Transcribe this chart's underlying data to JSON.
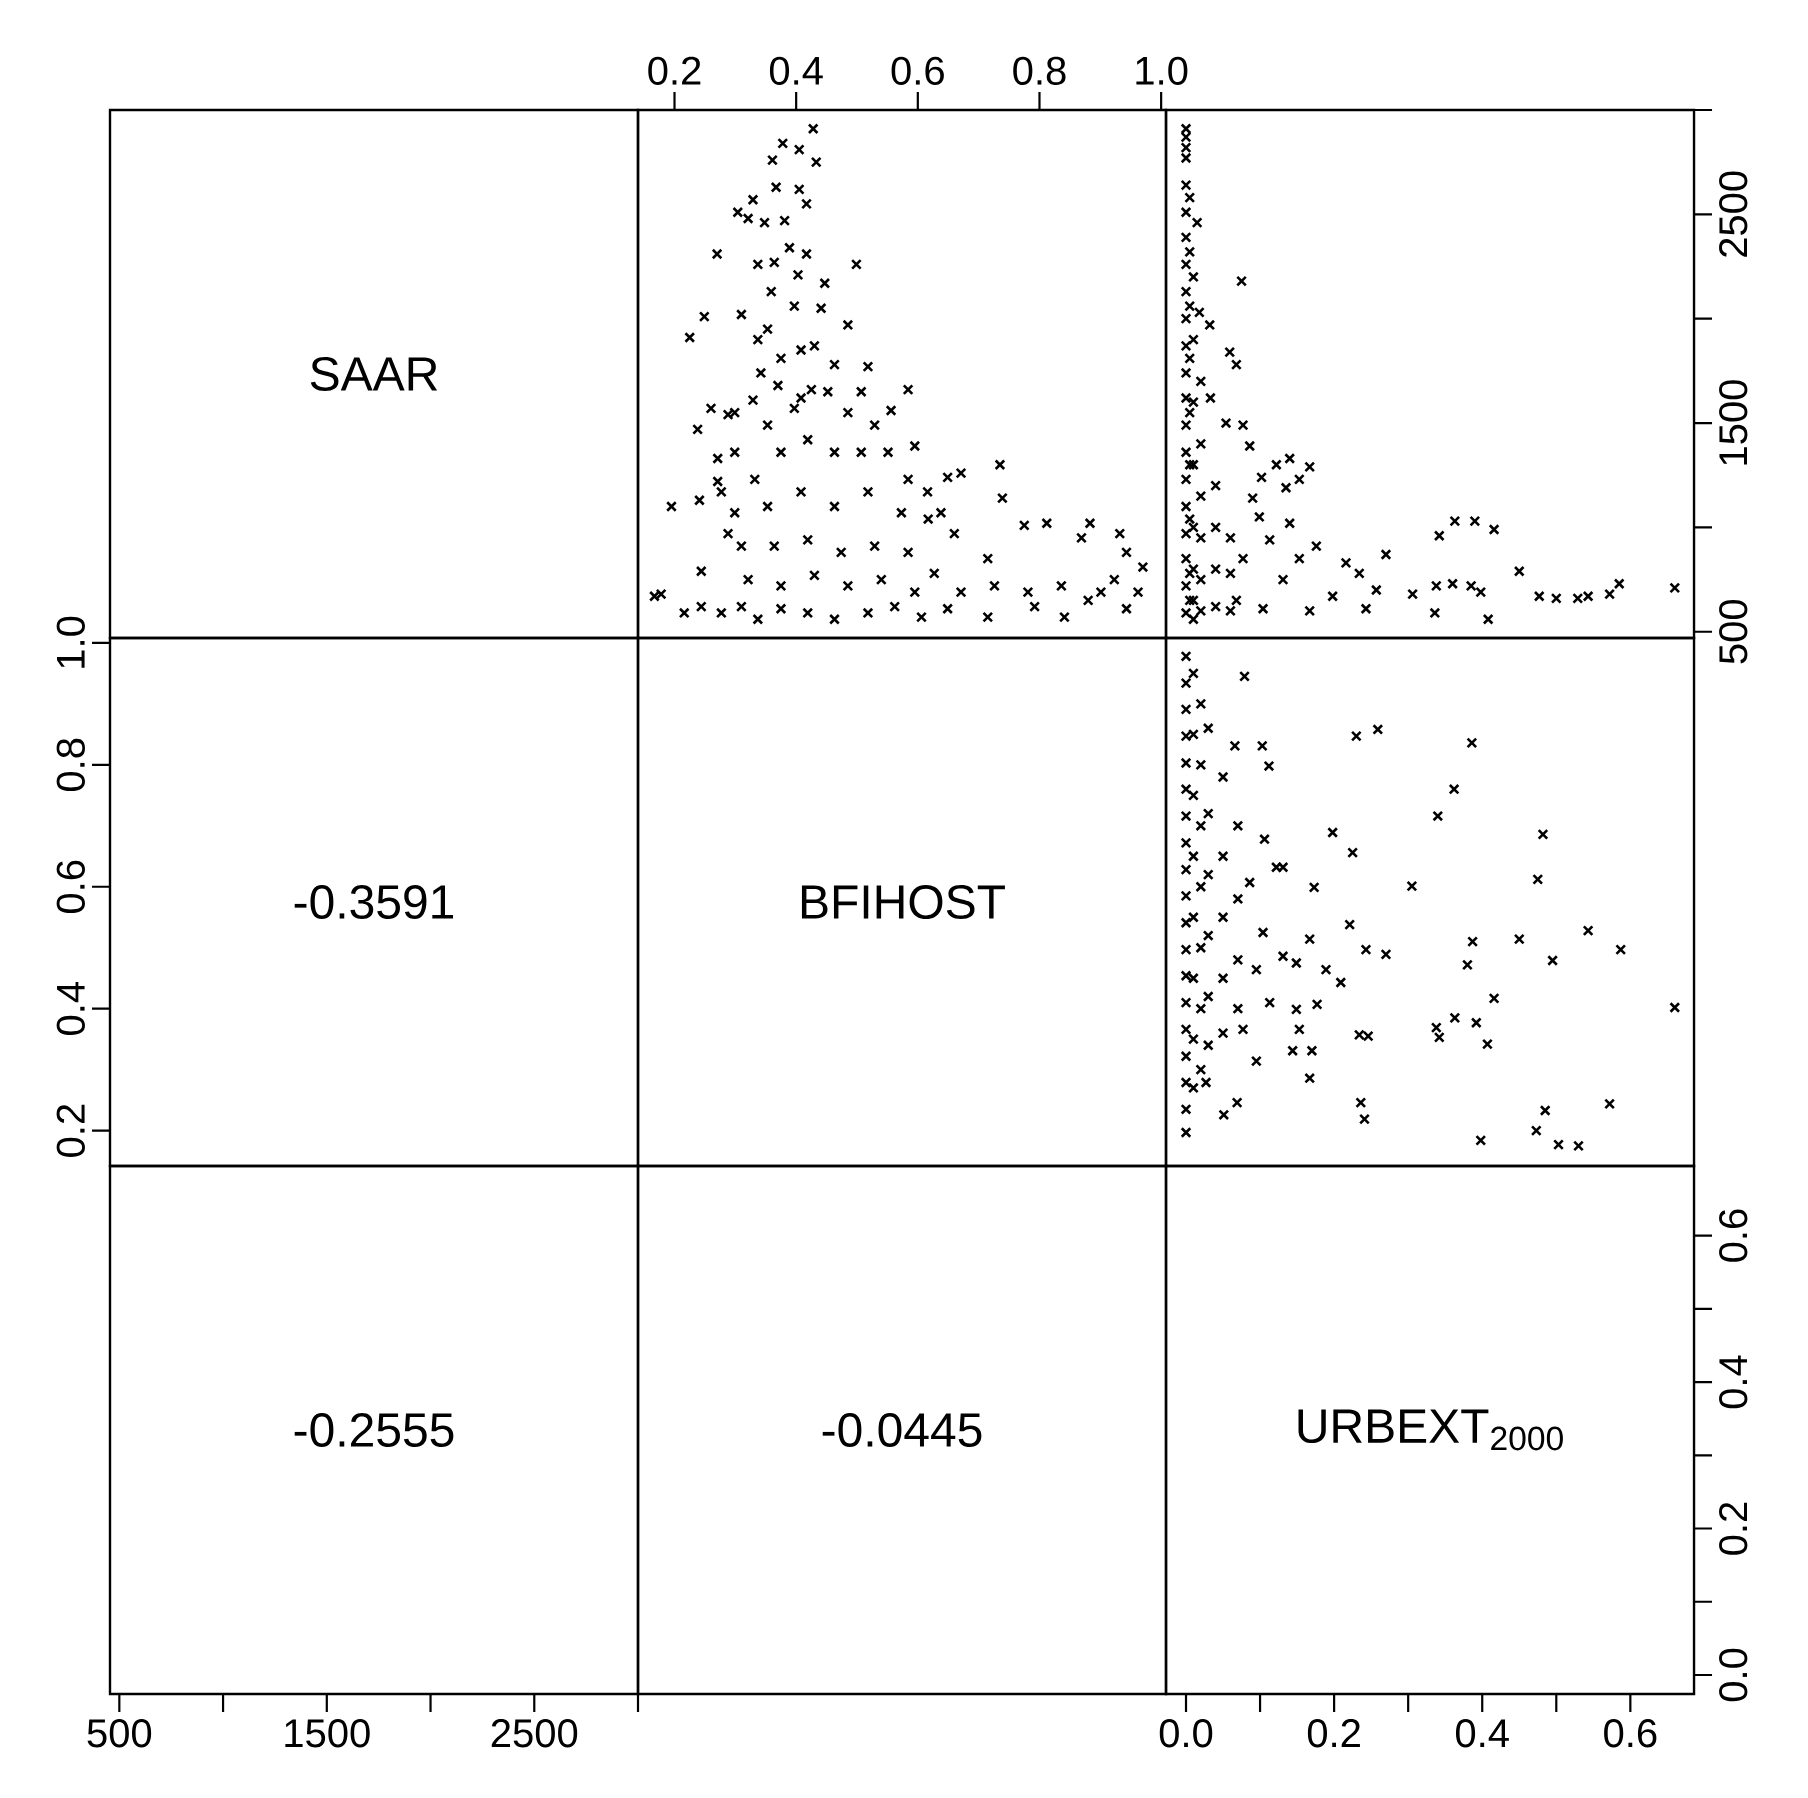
{
  "chart_data": [
    {
      "type": "other",
      "title": "SAAR"
    },
    {
      "type": "scatter",
      "marker": "cross",
      "xlim": [
        0.14,
        1.008
      ],
      "xticks": [
        0.2,
        0.4,
        0.6,
        0.8,
        {
          "value": 1.0,
          "label": "1.0"
        }
      ],
      "ylim": [
        470,
        3000
      ],
      "tick_labels": "x",
      "series": [
        {
          "color": "#000000",
          "x": [
            0.428,
            0.378,
            0.405,
            0.361,
            0.433,
            0.367,
            0.405,
            0.417,
            0.329,
            0.304,
            0.321,
            0.348,
            0.381,
            0.389,
            0.27,
            0.417,
            0.337,
            0.364,
            0.499,
            0.403,
            0.447,
            0.359,
            0.249,
            0.225,
            0.31,
            0.441,
            0.485,
            0.353,
            0.408,
            0.342,
            0.463,
            0.518,
            0.584,
            0.425,
            0.37,
            0.329,
            0.26,
            0.299,
            0.238,
            0.556,
            0.485,
            0.397,
            0.271,
            0.271,
            0.241,
            0.195,
            0.649,
            0.671,
            0.735,
            0.739,
            0.775,
            0.812,
            0.883,
            0.869,
            0.932,
            0.943,
            0.97,
            0.962,
            0.943,
            0.841,
            0.715,
            0.244,
            0.178,
            0.167,
            0.216,
            0.244,
            0.277,
            0.337,
            0.463,
            0.606,
            0.792,
            0.901,
            0.616,
            0.66,
            0.715,
            0.299,
            0.332,
            0.375,
            0.419,
            0.463,
            0.507,
            0.551,
            0.584,
            0.299,
            0.353,
            0.408,
            0.463,
            0.518,
            0.573,
            0.617,
            0.31,
            0.364,
            0.419,
            0.474,
            0.529,
            0.584,
            0.627,
            0.321,
            0.375,
            0.43,
            0.485,
            0.54,
            0.595,
            0.671,
            0.726,
            0.781,
            0.836,
            0.88,
            0.923,
            0.31,
            0.375,
            0.419,
            0.518,
            0.562,
            0.649,
            0.353,
            0.408,
            0.452,
            0.375,
            0.43,
            0.397,
            0.337,
            0.288,
            0.507,
            0.529,
            0.595,
            0.638,
            0.277,
            0.288
          ],
          "values": [
            2910,
            2840,
            2810,
            2760,
            2750,
            2630,
            2620,
            2550,
            2570,
            2510,
            2480,
            2460,
            2470,
            2340,
            2310,
            2310,
            2260,
            2270,
            2260,
            2210,
            2170,
            2130,
            2010,
            1910,
            2020,
            2050,
            1970,
            1950,
            1850,
            1740,
            1780,
            1770,
            1660,
            1660,
            1680,
            1610,
            1570,
            1550,
            1470,
            1560,
            1550,
            1570,
            1330,
            1220,
            1130,
            1100,
            1240,
            1260,
            1300,
            1140,
            1010,
            1020,
            1020,
            950,
            970,
            880,
            810,
            690,
            610,
            570,
            570,
            790,
            680,
            670,
            590,
            620,
            590,
            560,
            560,
            570,
            620,
            690,
            1170,
            970,
            850,
            1360,
            1230,
            1360,
            1420,
            1360,
            1360,
            1360,
            1230,
            1070,
            1100,
            1170,
            1100,
            1170,
            1070,
            1040,
            910,
            910,
            940,
            880,
            910,
            880,
            780,
            750,
            720,
            770,
            720,
            750,
            690,
            690,
            720,
            690,
            720,
            650,
            750,
            620,
            610,
            590,
            590,
            620,
            610,
            1490,
            1620,
            1650,
            1810,
            1870,
            2060,
            1900,
            1540,
            1650,
            1490,
            1390,
            1070,
            1170,
            970
          ]
        }
      ]
    },
    {
      "type": "scatter",
      "marker": "cross",
      "xlim": [
        -0.027,
        0.686
      ],
      "ylim": [
        470,
        3000
      ],
      "yticks": [
        500,
        {
          "value": 1000,
          "label": null
        },
        1500,
        {
          "value": 2000,
          "label": null
        },
        2500,
        {
          "value": 3000,
          "label": null
        }
      ],
      "tick_labels": "y",
      "series": [
        {
          "color": "#000000",
          "x": [
            0,
            0,
            0,
            0,
            0,
            0,
            0,
            0,
            0,
            0,
            0,
            0,
            0,
            0,
            0,
            0,
            0,
            0,
            0,
            0,
            0,
            0.005,
            0.005,
            0.005,
            0.005,
            0.005,
            0.005,
            0.005,
            0.005,
            0.005,
            0.01,
            0.01,
            0.01,
            0.01,
            0.01,
            0.01,
            0.01,
            0.01,
            0.02,
            0.02,
            0.02,
            0.02,
            0.02,
            0.02,
            0.04,
            0.04,
            0.04,
            0.04,
            0.06,
            0.06,
            0.06,
            0.015,
            0.075,
            0.018,
            0.032,
            0.059,
            0.068,
            0.033,
            0.054,
            0.077,
            0.086,
            0.122,
            0.14,
            0.167,
            0.153,
            0.102,
            0.09,
            0.135,
            0.099,
            0.14,
            0.113,
            0.176,
            0.216,
            0.234,
            0.27,
            0.257,
            0.243,
            0.167,
            0.104,
            0.198,
            0.342,
            0.363,
            0.39,
            0.416,
            0.306,
            0.338,
            0.36,
            0.385,
            0.398,
            0.45,
            0.336,
            0.408,
            0.477,
            0.5,
            0.529,
            0.543,
            0.572,
            0.585,
            0.66,
            0.153,
            0.131,
            0.077,
            0.068
          ],
          "values": [
            2910,
            2870,
            2820,
            2770,
            2640,
            2510,
            2390,
            2260,
            2130,
            2000,
            1870,
            1740,
            1620,
            1490,
            1360,
            1230,
            1100,
            970,
            850,
            720,
            590,
            2580,
            2320,
            2060,
            1810,
            1550,
            1300,
            1040,
            780,
            650,
            2200,
            1900,
            1600,
            1300,
            1000,
            800,
            650,
            560,
            1700,
            1400,
            1150,
            950,
            750,
            600,
            1200,
            1000,
            800,
            620,
            950,
            780,
            600,
            2460,
            2180,
            2030,
            1970,
            1840,
            1780,
            1620,
            1500,
            1490,
            1390,
            1300,
            1330,
            1290,
            1230,
            1240,
            1140,
            1190,
            1050,
            1020,
            940,
            910,
            830,
            780,
            870,
            700,
            610,
            600,
            610,
            670,
            960,
            1030,
            1030,
            990,
            680,
            720,
            730,
            720,
            690,
            790,
            590,
            560,
            670,
            660,
            660,
            670,
            680,
            730,
            710,
            850,
            750,
            850,
            650
          ]
        }
      ]
    },
    {
      "type": "scatter",
      "title": "-0.3591",
      "xlim": [
        455,
        3000
      ],
      "ylim": [
        0.142,
        1.008
      ],
      "yticks": [
        0.2,
        0.4,
        0.6,
        0.8,
        {
          "value": 1.0,
          "label": "1.0"
        }
      ],
      "tick_labels": "y"
    },
    {
      "type": "other",
      "title": "BFIHOST"
    },
    {
      "type": "scatter",
      "marker": "cross",
      "xlim": [
        -0.027,
        0.686
      ],
      "ylim": [
        0.142,
        1.008
      ],
      "tick_labels": false,
      "series": [
        {
          "color": "#000000",
          "x": [
            0,
            0,
            0,
            0,
            0,
            0,
            0,
            0,
            0,
            0,
            0,
            0,
            0,
            0,
            0,
            0,
            0,
            0,
            0,
            0.01,
            0.01,
            0.01,
            0.01,
            0.01,
            0.01,
            0.01,
            0.01,
            0.02,
            0.02,
            0.02,
            0.02,
            0.02,
            0.02,
            0.02,
            0.03,
            0.03,
            0.03,
            0.03,
            0.03,
            0.03,
            0.05,
            0.05,
            0.05,
            0.05,
            0.05,
            0.07,
            0.07,
            0.07,
            0.07,
            0.079,
            0.23,
            0.259,
            0.386,
            0.103,
            0.112,
            0.066,
            0.362,
            0.34,
            0.198,
            0.482,
            0.225,
            0.106,
            0.122,
            0.131,
            0.173,
            0.305,
            0.475,
            0.086,
            0.221,
            0.387,
            0.45,
            0.543,
            0.587,
            0.495,
            0.38,
            0.243,
            0.27,
            0.167,
            0.189,
            0.209,
            0.177,
            0.416,
            0.66,
            0.338,
            0.363,
            0.392,
            0.342,
            0.407,
            0.234,
            0.246,
            0.144,
            0.17,
            0.095,
            0.167,
            0.027,
            0.069,
            0.051,
            0.236,
            0.241,
            0.485,
            0.572,
            0.473,
            0.503,
            0.53,
            0.398,
            0.104,
            0.131,
            0.149,
            0.113,
            0.149,
            0.077,
            0.095,
            0.153
          ],
          "values": [
            0.978,
            0.934,
            0.891,
            0.847,
            0.803,
            0.76,
            0.716,
            0.672,
            0.628,
            0.585,
            0.541,
            0.497,
            0.454,
            0.41,
            0.366,
            0.322,
            0.279,
            0.235,
            0.197,
            0.95,
            0.85,
            0.75,
            0.65,
            0.55,
            0.45,
            0.35,
            0.27,
            0.9,
            0.8,
            0.7,
            0.6,
            0.5,
            0.4,
            0.3,
            0.86,
            0.72,
            0.62,
            0.52,
            0.42,
            0.34,
            0.78,
            0.65,
            0.55,
            0.45,
            0.36,
            0.7,
            0.58,
            0.48,
            0.4,
            0.945,
            0.847,
            0.858,
            0.836,
            0.831,
            0.798,
            0.831,
            0.76,
            0.716,
            0.689,
            0.686,
            0.656,
            0.678,
            0.632,
            0.632,
            0.599,
            0.601,
            0.612,
            0.607,
            0.538,
            0.51,
            0.514,
            0.528,
            0.497,
            0.479,
            0.472,
            0.497,
            0.489,
            0.514,
            0.464,
            0.443,
            0.407,
            0.417,
            0.402,
            0.369,
            0.385,
            0.377,
            0.353,
            0.342,
            0.357,
            0.355,
            0.331,
            0.331,
            0.314,
            0.286,
            0.279,
            0.246,
            0.226,
            0.246,
            0.219,
            0.233,
            0.244,
            0.2,
            0.177,
            0.175,
            0.184,
            0.525,
            0.486,
            0.475,
            0.41,
            0.399,
            0.366,
            0.464,
            0.366
          ]
        }
      ]
    },
    {
      "type": "scatter",
      "title": "-0.2555",
      "xlim": [
        455,
        3000
      ],
      "xticks": [
        500,
        {
          "value": 1000,
          "label": null
        },
        1500,
        {
          "value": 2000,
          "label": null
        },
        2500,
        {
          "value": 3000,
          "label": null
        }
      ],
      "ylim": [
        -0.026,
        0.695
      ],
      "tick_labels": "x"
    },
    {
      "type": "other",
      "title": "-0.0445"
    },
    {
      "type": "scatter",
      "title": "URBEXT$_{2000}$",
      "xlim": [
        -0.027,
        0.686
      ],
      "xticks": [
        {
          "value": 0,
          "label": "0.0"
        },
        {
          "value": 0.1,
          "label": null
        },
        0.2,
        {
          "value": 0.3,
          "label": null
        },
        0.4,
        {
          "value": 0.5,
          "label": null
        },
        0.6
      ],
      "ylim": [
        -0.026,
        0.695
      ],
      "yticks": [
        {
          "value": 0,
          "label": "0.0"
        },
        {
          "value": 0.1,
          "label": null
        },
        0.2,
        {
          "value": 0.3,
          "label": null
        },
        0.4,
        {
          "value": 0.5,
          "label": null
        },
        0.6
      ]
    }
  ]
}
